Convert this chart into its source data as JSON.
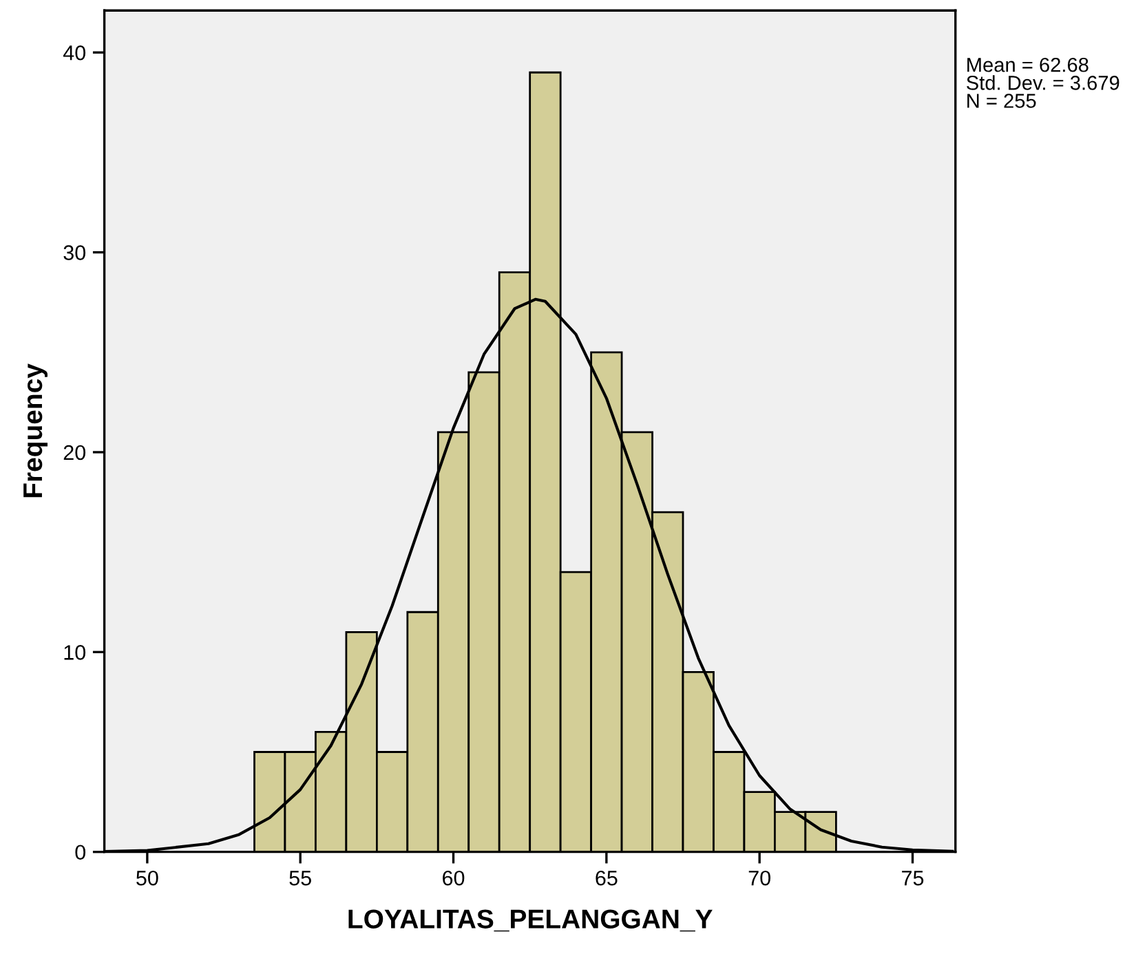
{
  "chart_data": {
    "type": "histogram",
    "xlabel": "LOYALITAS_PELANGGAN_Y",
    "ylabel": "Frequency",
    "bins": [
      53.5,
      54.5,
      55.5,
      56.5,
      57.5,
      58.5,
      59.5,
      60.5,
      61.5,
      62.5,
      63.5,
      64.5,
      65.5,
      66.5,
      67.5,
      68.5,
      69.5,
      70.5,
      71.5,
      72.5
    ],
    "values": [
      5,
      5,
      6,
      11,
      5,
      12,
      21,
      24,
      29,
      39,
      14,
      25,
      21,
      17,
      9,
      5,
      3,
      2,
      2
    ],
    "color": "#d3ce97",
    "series": [
      {
        "type": "line",
        "color": "#000000",
        "x": [
          48.6,
          50,
          52,
          53,
          54,
          55,
          56,
          57,
          58,
          59,
          60,
          61,
          62,
          62.68,
          63,
          64,
          65,
          66,
          67,
          68,
          69,
          70,
          71,
          72,
          73,
          74,
          75,
          76.3
        ],
        "values": [
          0.02,
          0.07,
          0.41,
          0.87,
          1.71,
          3.12,
          5.32,
          8.39,
          12.31,
          16.77,
          21.2,
          24.9,
          27.18,
          27.65,
          27.55,
          25.9,
          22.7,
          18.4,
          13.9,
          9.7,
          6.33,
          3.82,
          2.14,
          1.11,
          0.54,
          0.24,
          0.1,
          0.03
        ]
      }
    ],
    "xlim": [
      48.6,
      76.4
    ],
    "xticks": [
      50,
      55,
      60,
      65,
      70,
      75
    ],
    "ylim": [
      0,
      42.1
    ],
    "yticks": [
      0,
      10,
      20,
      30,
      40
    ],
    "grid": false,
    "legend": false,
    "annotations": [
      "Mean = 62.68\nStd. Dev. = 3.679\nN = 255"
    ]
  }
}
